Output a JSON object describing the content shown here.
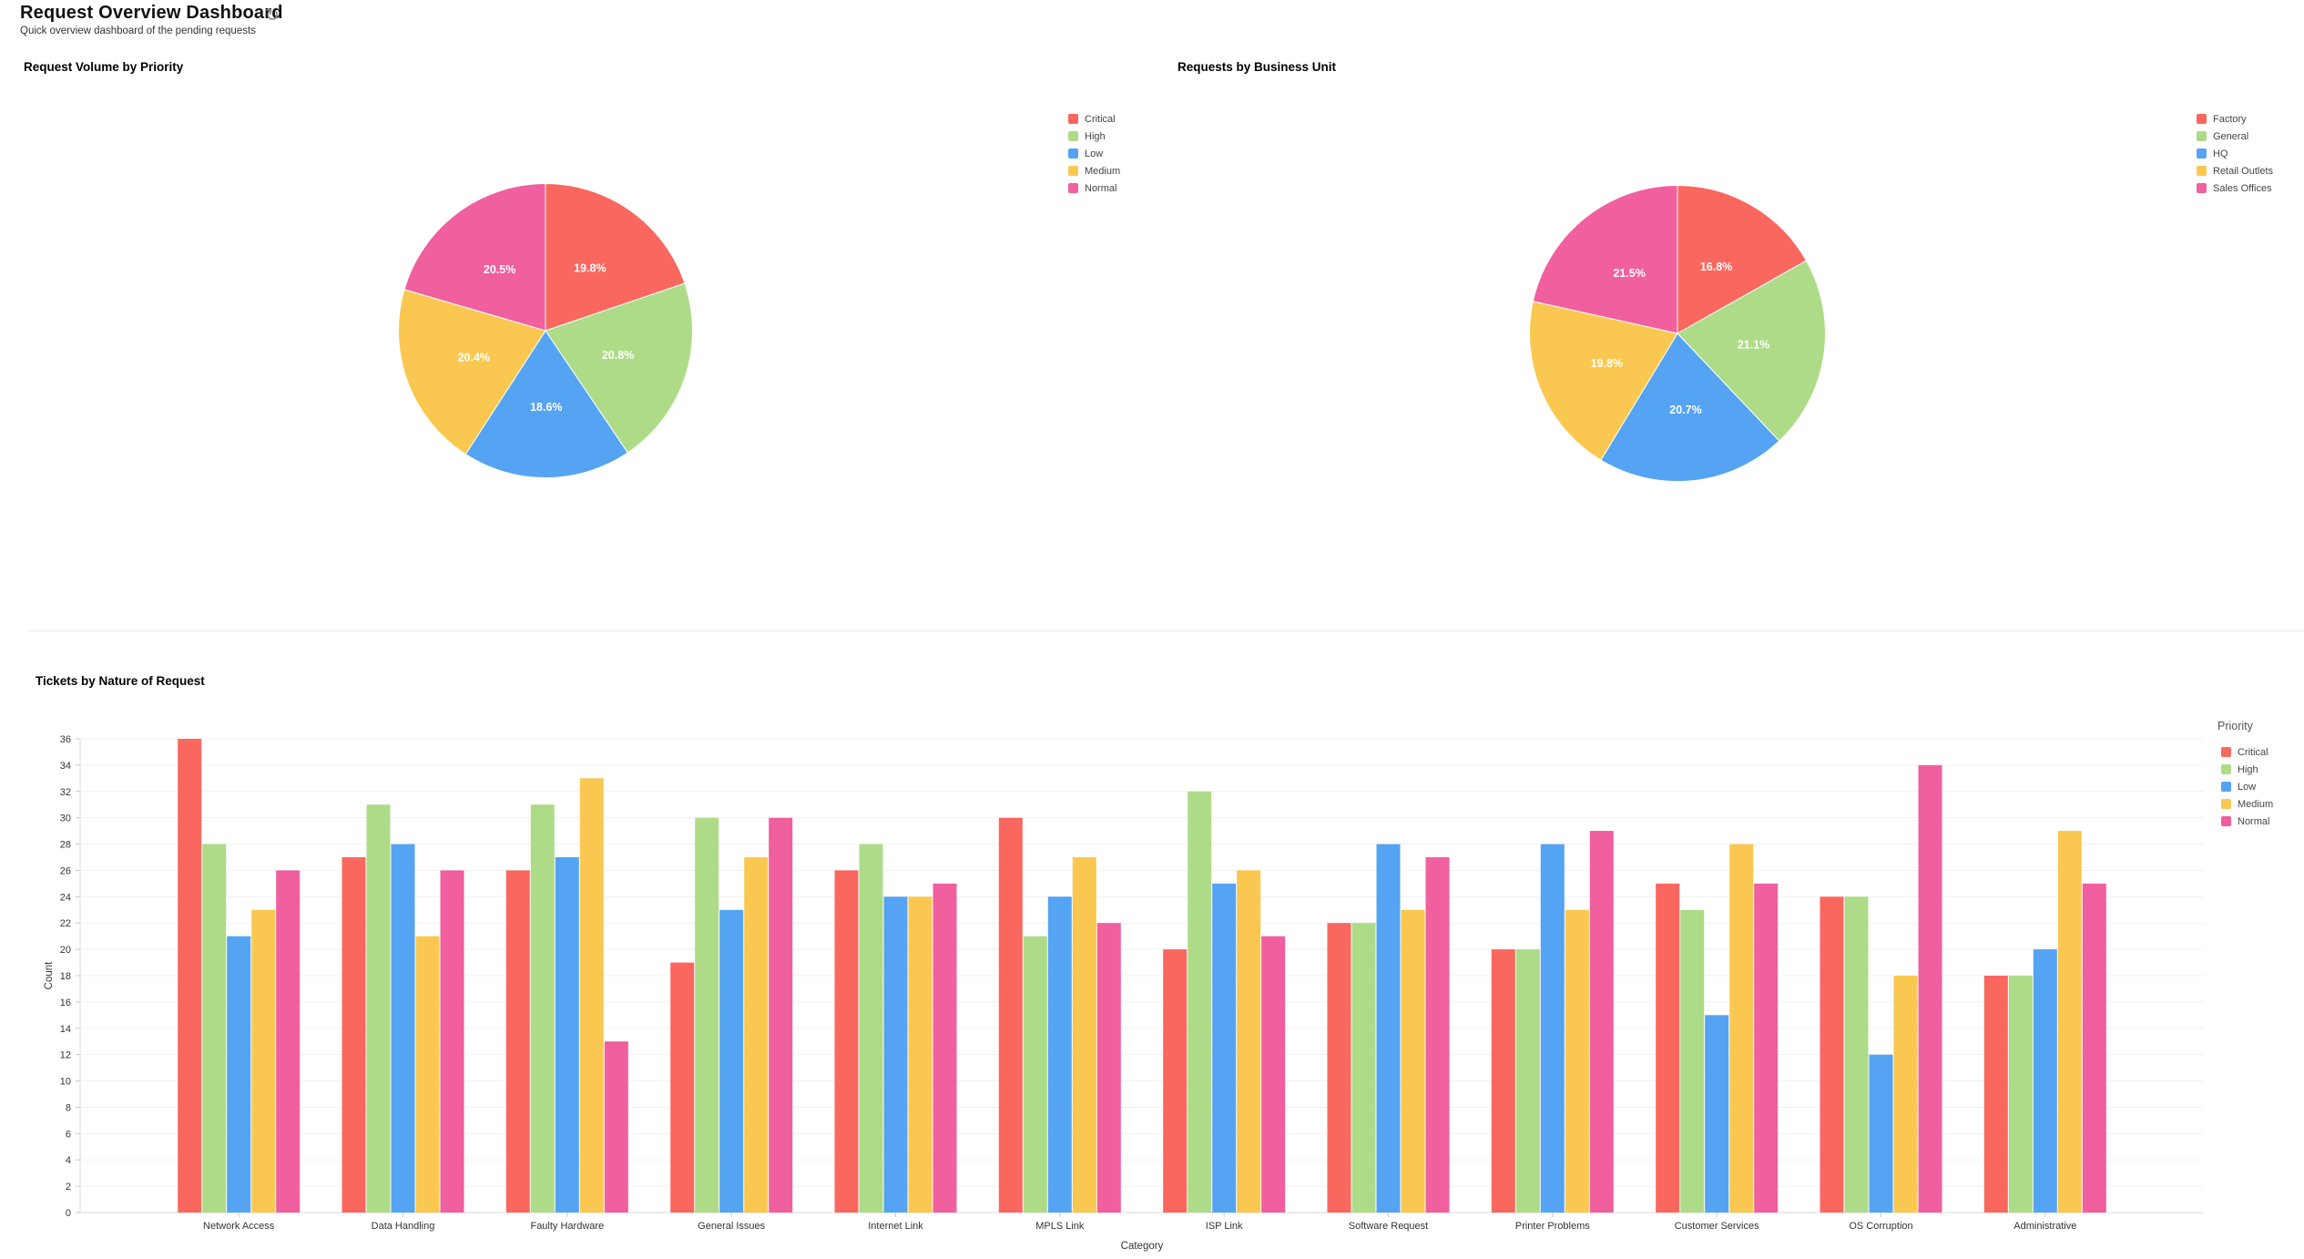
{
  "page": {
    "title": "Request Overview Dashboard",
    "subtitle": "Quick overview dashboard of the pending requests",
    "refresh_icon": "↻"
  },
  "palette": {
    "red": "#FA675F",
    "green": "#AEDB88",
    "blue": "#55A3F3",
    "yellow": "#FAC850",
    "pink": "#F05F9E",
    "grid": "#F1F1F1",
    "axis": "#D8D8D8",
    "tick": "#C9C9C9",
    "axis_text": "#333333",
    "legend_text": "#444444"
  },
  "chart_data": [
    {
      "type": "pie",
      "title": "Request Volume by Priority",
      "labels": [
        "Critical",
        "High",
        "Low",
        "Medium",
        "Normal"
      ],
      "values": [
        19.8,
        20.8,
        18.6,
        20.4,
        20.5
      ],
      "value_suffix": "%",
      "colors": [
        "#FA675F",
        "#AEDB88",
        "#55A3F3",
        "#FAC850",
        "#F05F9E"
      ],
      "legend_position": "right"
    },
    {
      "type": "pie",
      "title": "Requests by Business Unit",
      "labels": [
        "Factory",
        "General",
        "HQ",
        "Retail Outlets",
        "Sales Offices"
      ],
      "values": [
        16.8,
        21.1,
        20.7,
        19.8,
        21.5
      ],
      "value_suffix": "%",
      "colors": [
        "#FA675F",
        "#AEDB88",
        "#55A3F3",
        "#FAC850",
        "#F05F9E"
      ],
      "legend_position": "right"
    },
    {
      "type": "bar",
      "title": "Tickets by Nature of Request",
      "categories": [
        "Network Access",
        "Data Handling",
        "Faulty Hardware",
        "General Issues",
        "Internet Link",
        "MPLS Link",
        "ISP Link",
        "Software Request",
        "Printer Problems",
        "Customer Services",
        "OS Corruption",
        "Administrative"
      ],
      "series": [
        {
          "name": "Critical",
          "color": "#FA675F",
          "values": [
            36,
            27,
            26,
            19,
            26,
            30,
            20,
            22,
            20,
            25,
            24,
            18
          ]
        },
        {
          "name": "High",
          "color": "#AEDB88",
          "values": [
            28,
            31,
            31,
            30,
            28,
            21,
            32,
            22,
            20,
            23,
            24,
            18
          ]
        },
        {
          "name": "Low",
          "color": "#55A3F3",
          "values": [
            21,
            28,
            27,
            23,
            24,
            24,
            25,
            28,
            28,
            15,
            12,
            20
          ]
        },
        {
          "name": "Medium",
          "color": "#FAC850",
          "values": [
            23,
            21,
            33,
            27,
            24,
            27,
            26,
            23,
            23,
            28,
            18,
            29
          ]
        },
        {
          "name": "Normal",
          "color": "#F05F9E",
          "values": [
            26,
            26,
            13,
            30,
            25,
            22,
            21,
            27,
            29,
            25,
            34,
            25
          ]
        }
      ],
      "xlabel": "Category",
      "ylabel": "Count",
      "ylim": [
        0,
        36
      ],
      "ytick_step": 2,
      "grid": true,
      "legend_title": "Priority",
      "legend_position": "right"
    }
  ]
}
